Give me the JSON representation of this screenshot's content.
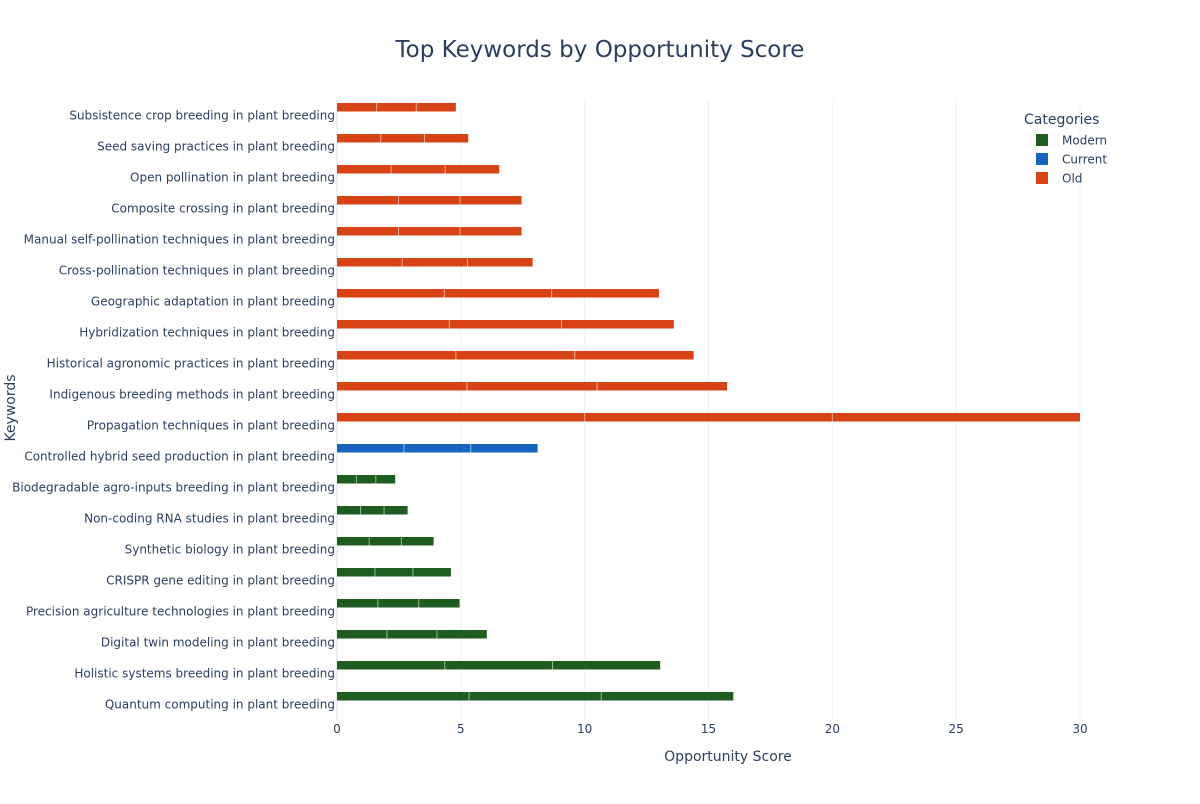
{
  "chart_data": {
    "type": "bar",
    "orientation": "horizontal",
    "title": "Top Keywords by Opportunity Score",
    "xlabel": "Opportunity Score",
    "ylabel": "Keywords",
    "xlim": [
      0,
      30
    ],
    "xticks": [
      0,
      5,
      10,
      15,
      20,
      25,
      30
    ],
    "grid": true,
    "legend_title": "Categories",
    "legend_position": "top-right",
    "series": [
      {
        "name": "Modern",
        "color": "#1f5c1f"
      },
      {
        "name": "Current",
        "color": "#1565c0"
      },
      {
        "name": "Old",
        "color": "#d84315"
      }
    ],
    "bars": [
      {
        "label": "Subsistence crop breeding in plant breeding",
        "category": "Old",
        "value": 4.8
      },
      {
        "label": "Seed saving practices in plant breeding",
        "category": "Old",
        "value": 5.3
      },
      {
        "label": "Open pollination in plant breeding",
        "category": "Old",
        "value": 6.55
      },
      {
        "label": "Composite crossing in plant breeding",
        "category": "Old",
        "value": 7.45
      },
      {
        "label": "Manual self-pollination techniques in plant breeding",
        "category": "Old",
        "value": 7.45
      },
      {
        "label": "Cross-pollination techniques in plant breeding",
        "category": "Old",
        "value": 7.9
      },
      {
        "label": "Geographic adaptation in plant breeding",
        "category": "Old",
        "value": 13.0
      },
      {
        "label": "Hybridization techniques in plant breeding",
        "category": "Old",
        "value": 13.6
      },
      {
        "label": "Historical agronomic practices in plant breeding",
        "category": "Old",
        "value": 14.4
      },
      {
        "label": "Indigenous breeding methods in plant breeding",
        "category": "Old",
        "value": 15.75
      },
      {
        "label": "Propagation techniques in plant breeding",
        "category": "Old",
        "value": 30.0
      },
      {
        "label": "Controlled hybrid seed production in plant breeding",
        "category": "Current",
        "value": 8.1
      },
      {
        "label": "Biodegradable agro-inputs breeding in plant breeding",
        "category": "Modern",
        "value": 2.35
      },
      {
        "label": "Non-coding RNA studies in plant breeding",
        "category": "Modern",
        "value": 2.85
      },
      {
        "label": "Synthetic biology in plant breeding",
        "category": "Modern",
        "value": 3.9
      },
      {
        "label": "CRISPR gene editing in plant breeding",
        "category": "Modern",
        "value": 4.6
      },
      {
        "label": "Precision agriculture technologies in plant breeding",
        "category": "Modern",
        "value": 4.95
      },
      {
        "label": "Digital twin modeling in plant breeding",
        "category": "Modern",
        "value": 6.05
      },
      {
        "label": "Holistic systems breeding in plant breeding",
        "category": "Modern",
        "value": 13.05
      },
      {
        "label": "Quantum computing in plant breeding",
        "category": "Modern",
        "value": 16.0
      }
    ]
  }
}
